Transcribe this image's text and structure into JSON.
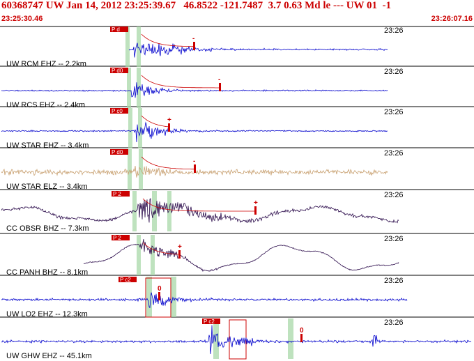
{
  "header": {
    "title": "60368747 UW Jan 14, 2012 23:25:39.67   46.8522 -121.7487  3.7 0.63 Md le --- UW 01  -1",
    "start_time": "23:25:30.46",
    "end_time": "23:26:07.16"
  },
  "colors": {
    "header_text": "#cc0000",
    "trace_blue": "#0000cc",
    "trace_tan": "#c8a070",
    "trace_purple": "#2a0a4a",
    "pick": "#cc0000",
    "window_green": "#a8d8a8",
    "divider": "#000000"
  },
  "chart_data": {
    "type": "line",
    "time_range": [
      "23:25:30.46",
      "23:26:07.16"
    ],
    "traces": [
      {
        "label": "UW RCM EHZ -- 2.2km",
        "time_label": "23:26",
        "pick_label": "P d",
        "polarity": "-",
        "color": "trace_blue"
      },
      {
        "label": "UW RCS EHZ -- 2.4km",
        "time_label": "23:26",
        "pick_label": "P d0",
        "polarity": "-",
        "color": "trace_blue"
      },
      {
        "label": "UW STAR EHZ -- 3.4km",
        "time_label": "23:26",
        "pick_label": "P c0",
        "polarity": "+",
        "color": "trace_blue"
      },
      {
        "label": "UW STAR ELZ -- 3.4km",
        "time_label": "23:26",
        "pick_label": "P d0",
        "polarity": "-",
        "color": "trace_tan"
      },
      {
        "label": "CC OBSR BHZ -- 7.3km",
        "time_label": "23:26",
        "pick_label": "P 2",
        "polarity": "+",
        "color": "trace_purple"
      },
      {
        "label": "CC PANH BHZ -- 8.1km",
        "time_label": "23:26",
        "pick_label": "P 2",
        "polarity": "+",
        "color": "trace_purple"
      },
      {
        "label": "UW LO2 EHZ -- 12.3km",
        "time_label": "23:26",
        "pick_label": "P c2",
        "polarity": "0",
        "color": "trace_blue"
      },
      {
        "label": "UW GHW EHZ -- 45.1km",
        "time_label": "23:26",
        "pick_label": "P c2",
        "polarity": "0",
        "color": "trace_blue"
      }
    ]
  }
}
